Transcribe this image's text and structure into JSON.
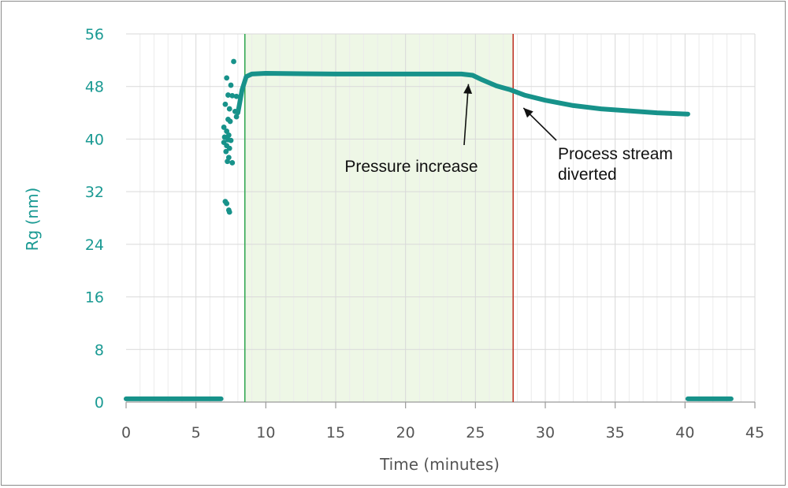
{
  "chart_data": {
    "type": "scatter",
    "xlabel": "Time (minutes)",
    "ylabel": "Rg (nm)",
    "xlim": [
      0,
      45
    ],
    "ylim": [
      0,
      56
    ],
    "x_ticks": [
      0,
      5,
      10,
      15,
      20,
      25,
      30,
      35,
      40,
      45
    ],
    "y_ticks": [
      0,
      8,
      16,
      24,
      32,
      40,
      48,
      56
    ],
    "grid": "vertical minor + horizontal major",
    "shaded_region": {
      "x_start": 8.5,
      "x_end": 27.7,
      "color": "#eef7e6"
    },
    "vertical_lines": [
      {
        "x": 8.5,
        "color": "#34a853"
      },
      {
        "x": 27.7,
        "color": "#c0392b"
      }
    ],
    "annotations": [
      {
        "text": "Pressure increase",
        "lines": [
          "Pressure increase"
        ],
        "target_x": 24.5,
        "target_y": 49.8
      },
      {
        "text": "Process stream diverted",
        "lines": [
          "Process stream",
          "diverted"
        ],
        "target_x": 28.1,
        "target_y": 45.7
      }
    ],
    "series": [
      {
        "name": "Rg",
        "color": "#17928a",
        "baseline_segments": [
          {
            "x_start": 0,
            "x_end": 6.8,
            "y": 0.5
          },
          {
            "x_start": 40.2,
            "x_end": 43.3,
            "y": 0.5
          }
        ],
        "scatter_points": [
          [
            7.7,
            51.8
          ],
          [
            7.2,
            49.3
          ],
          [
            7.5,
            48.2
          ],
          [
            7.3,
            46.7
          ],
          [
            7.6,
            46.6
          ],
          [
            7.9,
            46.5
          ],
          [
            7.1,
            45.3
          ],
          [
            7.4,
            44.6
          ],
          [
            7.8,
            44.2
          ],
          [
            7.9,
            43.4
          ],
          [
            7.3,
            43.0
          ],
          [
            7.45,
            42.7
          ],
          [
            7.0,
            41.8
          ],
          [
            7.2,
            41.2
          ],
          [
            7.35,
            40.6
          ],
          [
            7.05,
            40.3
          ],
          [
            7.3,
            39.9
          ],
          [
            7.5,
            39.8
          ],
          [
            7.0,
            39.5
          ],
          [
            7.2,
            39.0
          ],
          [
            7.4,
            38.6
          ],
          [
            7.15,
            38.1
          ],
          [
            7.35,
            37.2
          ],
          [
            7.25,
            36.6
          ],
          [
            7.6,
            36.4
          ],
          [
            7.1,
            30.5
          ],
          [
            7.2,
            30.2
          ],
          [
            7.35,
            29.2
          ],
          [
            7.4,
            28.9
          ]
        ],
        "curve": [
          [
            8.0,
            44.0
          ],
          [
            8.3,
            47.5
          ],
          [
            8.6,
            49.5
          ],
          [
            9.0,
            49.9
          ],
          [
            10,
            50.0
          ],
          [
            15,
            49.9
          ],
          [
            20,
            49.9
          ],
          [
            24.0,
            49.9
          ],
          [
            24.8,
            49.7
          ],
          [
            25.5,
            49.0
          ],
          [
            26.5,
            48.1
          ],
          [
            27.5,
            47.5
          ],
          [
            28.5,
            46.7
          ],
          [
            30,
            45.9
          ],
          [
            32,
            45.1
          ],
          [
            34,
            44.6
          ],
          [
            36,
            44.3
          ],
          [
            38,
            44.0
          ],
          [
            40.2,
            43.8
          ]
        ]
      }
    ]
  }
}
